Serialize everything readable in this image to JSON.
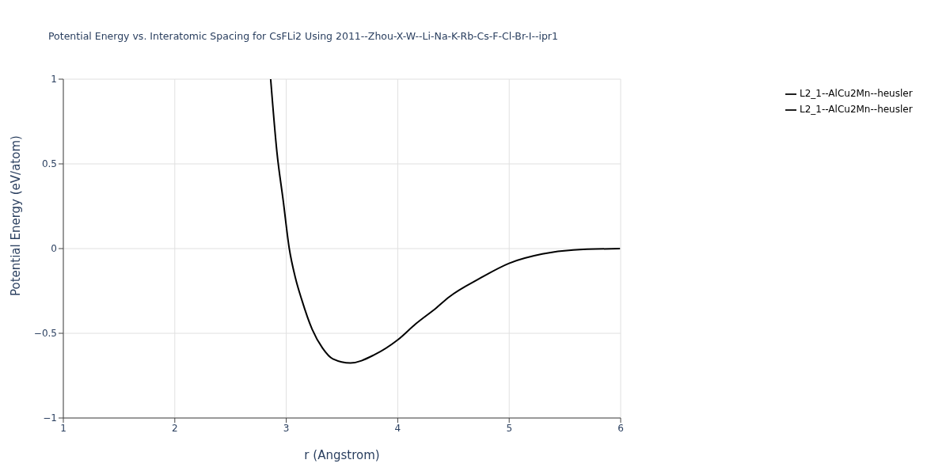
{
  "chart_data": {
    "type": "line",
    "title": "Potential Energy vs. Interatomic Spacing for CsFLi2 Using 2011--Zhou-X-W--Li-Na-K-Rb-Cs-F-Cl-Br-I--ipr1",
    "xlabel": "r (Angstrom)",
    "ylabel": "Potential Energy (eV/atom)",
    "x": [
      2.86,
      2.916,
      2.972,
      3.027,
      3.083,
      3.139,
      3.232,
      3.325,
      3.418,
      3.576,
      3.79,
      3.998,
      4.162,
      4.348,
      4.46,
      4.739,
      4.999,
      5.297,
      5.576,
      5.994
    ],
    "series": [
      {
        "name": "L2_1--AlCu2Mn--heusler",
        "color": "#000000",
        "values": [
          1.0,
          0.571,
          0.286,
          0,
          -0.175,
          -0.302,
          -0.476,
          -0.587,
          -0.651,
          -0.675,
          -0.627,
          -0.54,
          -0.444,
          -0.349,
          -0.286,
          -0.175,
          -0.087,
          -0.032,
          -0.008,
          0
        ]
      },
      {
        "name": "L2_1--AlCu2Mn--heusler",
        "color": "#000000",
        "values": [
          null,
          null,
          null,
          null,
          null,
          null,
          null,
          null,
          null,
          null,
          null,
          null,
          null,
          null,
          null,
          null,
          null,
          null,
          null,
          null
        ]
      }
    ],
    "xlim": [
      1,
      6
    ],
    "xticks": [
      1,
      2,
      3,
      4,
      5,
      6
    ],
    "ylim": [
      -1,
      1
    ],
    "yticks": [
      {
        "value": -1,
        "label": "−1"
      },
      {
        "value": -0.5,
        "label": "−0.5"
      },
      0,
      0.5,
      1
    ],
    "grid": true,
    "legend": "top right",
    "marker": "none",
    "line_style": "solid"
  }
}
